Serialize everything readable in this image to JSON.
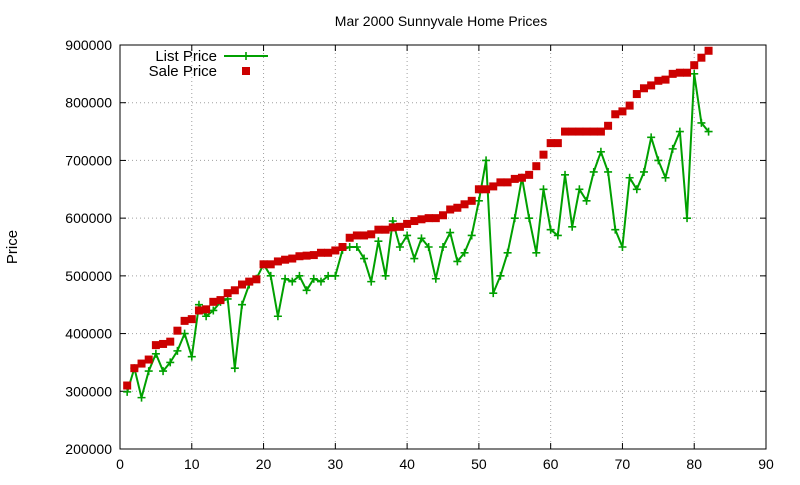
{
  "chart_data": {
    "type": "line",
    "title": "Mar 2000 Sunnyvale Home Prices",
    "xlabel": "",
    "ylabel": "Price",
    "xlim": [
      0,
      90
    ],
    "ylim": [
      200000,
      900000
    ],
    "xticks": [
      0,
      10,
      20,
      30,
      40,
      50,
      60,
      70,
      80,
      90
    ],
    "yticks": [
      200000,
      300000,
      400000,
      500000,
      600000,
      700000,
      800000,
      900000
    ],
    "grid": true,
    "legend_position": "top-left",
    "series": [
      {
        "name": "List Price",
        "style": "line+plus",
        "color": "#00a000",
        "x": [
          1,
          2,
          3,
          4,
          5,
          6,
          7,
          8,
          9,
          10,
          11,
          12,
          13,
          14,
          15,
          16,
          17,
          18,
          19,
          20,
          21,
          22,
          23,
          24,
          25,
          26,
          27,
          28,
          29,
          30,
          31,
          32,
          33,
          34,
          35,
          36,
          37,
          38,
          39,
          40,
          41,
          42,
          43,
          44,
          45,
          46,
          47,
          48,
          49,
          50,
          51,
          52,
          53,
          54,
          55,
          56,
          57,
          58,
          59,
          60,
          61,
          62,
          63,
          64,
          65,
          66,
          67,
          68,
          69,
          70,
          71,
          72,
          73,
          74,
          75,
          76,
          77,
          78,
          79,
          80,
          81,
          82
        ],
        "values": [
          299000,
          340000,
          289000,
          335000,
          365000,
          335000,
          350000,
          370000,
          400000,
          360000,
          450000,
          430000,
          440000,
          455000,
          460000,
          340000,
          450000,
          485000,
          495000,
          520000,
          500000,
          430000,
          495000,
          490000,
          500000,
          475000,
          495000,
          490000,
          500000,
          500000,
          545000,
          550000,
          550000,
          530000,
          490000,
          560000,
          500000,
          595000,
          550000,
          570000,
          530000,
          565000,
          550000,
          495000,
          550000,
          575000,
          525000,
          540000,
          570000,
          630000,
          700000,
          470000,
          500000,
          540000,
          600000,
          670000,
          600000,
          540000,
          650000,
          580000,
          570000,
          675000,
          585000,
          650000,
          630000,
          680000,
          715000,
          680000,
          580000,
          550000,
          670000,
          650000,
          680000,
          740000,
          700000,
          670000,
          720000,
          750000,
          600000,
          850000,
          765000,
          750000
        ]
      },
      {
        "name": "Sale Price",
        "style": "squares",
        "color": "#cc0000",
        "x": [
          1,
          2,
          3,
          4,
          5,
          6,
          7,
          8,
          9,
          10,
          11,
          12,
          13,
          14,
          15,
          16,
          17,
          18,
          19,
          20,
          21,
          22,
          23,
          24,
          25,
          26,
          27,
          28,
          29,
          30,
          31,
          32,
          33,
          34,
          35,
          36,
          37,
          38,
          39,
          40,
          41,
          42,
          43,
          44,
          45,
          46,
          47,
          48,
          49,
          50,
          51,
          52,
          53,
          54,
          55,
          56,
          57,
          58,
          59,
          60,
          61,
          62,
          63,
          64,
          65,
          66,
          67,
          68,
          69,
          70,
          71,
          72,
          73,
          74,
          75,
          76,
          77,
          78,
          79,
          80,
          81,
          82
        ],
        "values": [
          310000,
          340000,
          348000,
          355000,
          380000,
          382000,
          386000,
          405000,
          422000,
          425000,
          440000,
          442000,
          455000,
          458000,
          470000,
          475000,
          485000,
          490000,
          494000,
          520000,
          520000,
          525000,
          528000,
          530000,
          534000,
          535000,
          536000,
          540000,
          540000,
          544000,
          550000,
          566000,
          570000,
          570000,
          572000,
          580000,
          580000,
          584000,
          585000,
          590000,
          595000,
          598000,
          600000,
          600000,
          605000,
          615000,
          618000,
          624000,
          630000,
          650000,
          650000,
          655000,
          662000,
          662000,
          668000,
          670000,
          675000,
          690000,
          710000,
          730000,
          730000,
          750000,
          750000,
          750000,
          750000,
          750000,
          750000,
          760000,
          780000,
          785000,
          795000,
          815000,
          825000,
          830000,
          838000,
          840000,
          850000,
          852000,
          852000,
          865000,
          878000,
          890000
        ]
      }
    ]
  }
}
